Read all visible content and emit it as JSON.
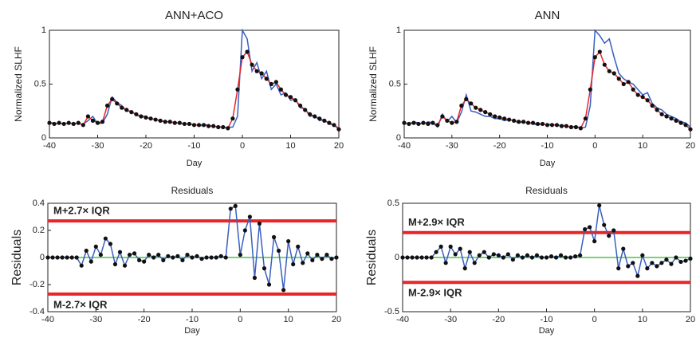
{
  "chart_data": [
    {
      "type": "line",
      "title": "ANN+ACO",
      "xlabel": "Day",
      "ylabel": "Normalized SLHF",
      "xlim": [
        -40,
        20
      ],
      "xticks": [
        -40,
        -30,
        -20,
        -10,
        0,
        10,
        20
      ],
      "ylim": [
        0,
        1
      ],
      "yticks": [
        0,
        0.5,
        1
      ],
      "x": [
        -40,
        -39,
        -38,
        -37,
        -36,
        -35,
        -34,
        -33,
        -32,
        -31,
        -30,
        -29,
        -28,
        -27,
        -26,
        -25,
        -24,
        -23,
        -22,
        -21,
        -20,
        -19,
        -18,
        -17,
        -16,
        -15,
        -14,
        -13,
        -12,
        -11,
        -10,
        -9,
        -8,
        -7,
        -6,
        -5,
        -4,
        -3,
        -2,
        -1,
        0,
        1,
        2,
        3,
        4,
        5,
        6,
        7,
        8,
        9,
        10,
        11,
        12,
        13,
        14,
        15,
        16,
        17,
        18,
        19,
        20
      ],
      "series": [
        {
          "color": "#3a5fbf",
          "markers": false,
          "values": [
            0.14,
            0.14,
            0.13,
            0.14,
            0.13,
            0.14,
            0.13,
            0.13,
            0.16,
            0.2,
            0.13,
            0.14,
            0.22,
            0.38,
            0.33,
            0.3,
            0.25,
            0.25,
            0.21,
            0.2,
            0.2,
            0.17,
            0.18,
            0.15,
            0.16,
            0.14,
            0.15,
            0.13,
            0.14,
            0.12,
            0.13,
            0.11,
            0.12,
            0.12,
            0.1,
            0.11,
            0.09,
            0.1,
            0.1,
            0.2,
            1.0,
            0.92,
            0.62,
            0.7,
            0.55,
            0.62,
            0.45,
            0.5,
            0.4,
            0.42,
            0.35,
            0.36,
            0.28,
            0.27,
            0.2,
            0.21,
            0.16,
            0.17,
            0.13,
            0.12,
            0.09
          ]
        },
        {
          "color": "#e8262a",
          "markers": true,
          "marker_color": "#111111",
          "values": [
            0.14,
            0.13,
            0.14,
            0.13,
            0.14,
            0.13,
            0.14,
            0.12,
            0.2,
            0.16,
            0.14,
            0.15,
            0.3,
            0.36,
            0.32,
            0.28,
            0.26,
            0.24,
            0.22,
            0.2,
            0.19,
            0.18,
            0.17,
            0.16,
            0.15,
            0.15,
            0.14,
            0.14,
            0.13,
            0.13,
            0.12,
            0.12,
            0.12,
            0.11,
            0.11,
            0.1,
            0.1,
            0.09,
            0.18,
            0.45,
            0.75,
            0.8,
            0.68,
            0.62,
            0.6,
            0.55,
            0.5,
            0.52,
            0.45,
            0.4,
            0.38,
            0.35,
            0.3,
            0.26,
            0.22,
            0.2,
            0.18,
            0.16,
            0.14,
            0.12,
            0.08
          ]
        }
      ]
    },
    {
      "type": "line",
      "title": "ANN",
      "xlabel": "Day",
      "ylabel": "Normalized SLHF",
      "xlim": [
        -40,
        20
      ],
      "xticks": [
        -40,
        -30,
        -20,
        -10,
        0,
        10,
        20
      ],
      "ylim": [
        0,
        1
      ],
      "yticks": [
        0,
        0.5,
        1
      ],
      "x": [
        -40,
        -39,
        -38,
        -37,
        -36,
        -35,
        -34,
        -33,
        -32,
        -31,
        -30,
        -29,
        -28,
        -27,
        -26,
        -25,
        -24,
        -23,
        -22,
        -21,
        -20,
        -19,
        -18,
        -17,
        -16,
        -15,
        -14,
        -13,
        -12,
        -11,
        -10,
        -9,
        -8,
        -7,
        -6,
        -5,
        -4,
        -3,
        -2,
        -1,
        0,
        1,
        2,
        3,
        4,
        5,
        6,
        7,
        8,
        9,
        10,
        11,
        12,
        13,
        14,
        15,
        16,
        17,
        18,
        19,
        20
      ],
      "series": [
        {
          "color": "#3a5fbf",
          "markers": false,
          "values": [
            0.14,
            0.13,
            0.15,
            0.14,
            0.13,
            0.15,
            0.14,
            0.1,
            0.22,
            0.15,
            0.2,
            0.14,
            0.24,
            0.4,
            0.25,
            0.24,
            0.22,
            0.2,
            0.2,
            0.18,
            0.18,
            0.16,
            0.17,
            0.16,
            0.14,
            0.15,
            0.14,
            0.13,
            0.12,
            0.13,
            0.12,
            0.13,
            0.11,
            0.12,
            0.11,
            0.1,
            0.11,
            0.09,
            0.1,
            0.3,
            1.0,
            0.95,
            0.88,
            0.92,
            0.75,
            0.6,
            0.55,
            0.52,
            0.5,
            0.45,
            0.4,
            0.42,
            0.32,
            0.28,
            0.26,
            0.22,
            0.2,
            0.18,
            0.15,
            0.14,
            0.1
          ]
        },
        {
          "color": "#e8262a",
          "markers": true,
          "marker_color": "#111111",
          "values": [
            0.14,
            0.13,
            0.14,
            0.13,
            0.14,
            0.13,
            0.14,
            0.12,
            0.2,
            0.16,
            0.14,
            0.15,
            0.3,
            0.36,
            0.32,
            0.28,
            0.26,
            0.24,
            0.22,
            0.2,
            0.19,
            0.18,
            0.17,
            0.16,
            0.15,
            0.15,
            0.14,
            0.14,
            0.13,
            0.13,
            0.12,
            0.12,
            0.12,
            0.11,
            0.11,
            0.1,
            0.1,
            0.09,
            0.18,
            0.45,
            0.75,
            0.8,
            0.68,
            0.62,
            0.6,
            0.55,
            0.5,
            0.52,
            0.45,
            0.4,
            0.38,
            0.35,
            0.3,
            0.26,
            0.22,
            0.2,
            0.18,
            0.16,
            0.14,
            0.12,
            0.08
          ]
        }
      ]
    },
    {
      "type": "line",
      "title": "Residuals",
      "xlabel": "Day",
      "ylabel": "Residuals",
      "xlim": [
        -40,
        20
      ],
      "xticks": [
        -40,
        -30,
        -20,
        -10,
        0,
        10,
        20
      ],
      "ylim": [
        -0.4,
        0.4
      ],
      "yticks": [
        -0.4,
        -0.2,
        0,
        0.2,
        0.4
      ],
      "x": [
        -40,
        -39,
        -38,
        -37,
        -36,
        -35,
        -34,
        -33,
        -32,
        -31,
        -30,
        -29,
        -28,
        -27,
        -26,
        -25,
        -24,
        -23,
        -22,
        -21,
        -20,
        -19,
        -18,
        -17,
        -16,
        -15,
        -14,
        -13,
        -12,
        -11,
        -10,
        -9,
        -8,
        -7,
        -6,
        -5,
        -4,
        -3,
        -2,
        -1,
        0,
        1,
        2,
        3,
        4,
        5,
        6,
        7,
        8,
        9,
        10,
        11,
        12,
        13,
        14,
        15,
        16,
        17,
        18,
        19,
        20
      ],
      "reference_line": {
        "value": 0,
        "color": "#4cc34c"
      },
      "thresholds": [
        {
          "value": 0.27,
          "label": "M+2.7× IQR",
          "color": "#e8262a"
        },
        {
          "value": -0.27,
          "label": "M-2.7× IQR",
          "color": "#e8262a"
        }
      ],
      "series": [
        {
          "color": "#3a5fbf",
          "markers": true,
          "marker_color": "#111111",
          "values": [
            0,
            0,
            0,
            0,
            0,
            0,
            0,
            -0.06,
            0.05,
            -0.03,
            0.08,
            0.02,
            0.14,
            0.1,
            -0.05,
            0.04,
            -0.06,
            0.02,
            0.03,
            -0.02,
            -0.03,
            0.02,
            0,
            0.02,
            -0.02,
            0.01,
            0,
            0.01,
            -0.02,
            0.02,
            0,
            0.01,
            -0.01,
            0,
            0,
            0,
            0.01,
            0,
            0.36,
            0.38,
            0.02,
            0.2,
            0.3,
            -0.15,
            0.25,
            -0.08,
            -0.2,
            0.15,
            0.05,
            -0.24,
            0.12,
            -0.05,
            0.08,
            -0.04,
            0.03,
            -0.02,
            0.02,
            -0.01,
            0.02,
            -0.01,
            0
          ]
        }
      ]
    },
    {
      "type": "line",
      "title": "Residuals",
      "xlabel": "Day",
      "ylabel": "Residuals",
      "xlim": [
        -40,
        20
      ],
      "xticks": [
        -40,
        -30,
        -20,
        -10,
        0,
        10,
        20
      ],
      "ylim": [
        -0.5,
        0.5
      ],
      "yticks": [
        -0.5,
        0,
        0.5
      ],
      "x": [
        -40,
        -39,
        -38,
        -37,
        -36,
        -35,
        -34,
        -33,
        -32,
        -31,
        -30,
        -29,
        -28,
        -27,
        -26,
        -25,
        -24,
        -23,
        -22,
        -21,
        -20,
        -19,
        -18,
        -17,
        -16,
        -15,
        -14,
        -13,
        -12,
        -11,
        -10,
        -9,
        -8,
        -7,
        -6,
        -5,
        -4,
        -3,
        -2,
        -1,
        0,
        1,
        2,
        3,
        4,
        5,
        6,
        7,
        8,
        9,
        10,
        11,
        12,
        13,
        14,
        15,
        16,
        17,
        18,
        19,
        20
      ],
      "reference_line": {
        "value": 0,
        "color": "#4cc34c"
      },
      "thresholds": [
        {
          "value": 0.23,
          "label": "M+2.9× IQR",
          "color": "#e8262a"
        },
        {
          "value": -0.23,
          "label": "M-2.9× IQR",
          "color": "#e8262a"
        }
      ],
      "series": [
        {
          "color": "#3a5fbf",
          "markers": true,
          "marker_color": "#111111",
          "values": [
            0,
            0,
            0,
            0,
            0,
            0,
            0,
            0.05,
            0.1,
            -0.05,
            0.1,
            0.03,
            0.08,
            -0.1,
            0.05,
            -0.05,
            0.02,
            0.05,
            0,
            0.03,
            0.02,
            0,
            0.03,
            -0.02,
            0.02,
            0,
            0.02,
            0,
            0.02,
            0,
            0,
            0.01,
            0,
            0.02,
            0,
            0,
            0.01,
            0.02,
            0.26,
            0.28,
            0.15,
            0.48,
            0.3,
            0.2,
            0.25,
            -0.1,
            0.08,
            -0.08,
            -0.05,
            -0.17,
            0.02,
            -0.1,
            -0.05,
            -0.08,
            -0.05,
            -0.02,
            -0.06,
            0,
            -0.04,
            -0.03,
            -0.01
          ]
        }
      ]
    }
  ]
}
